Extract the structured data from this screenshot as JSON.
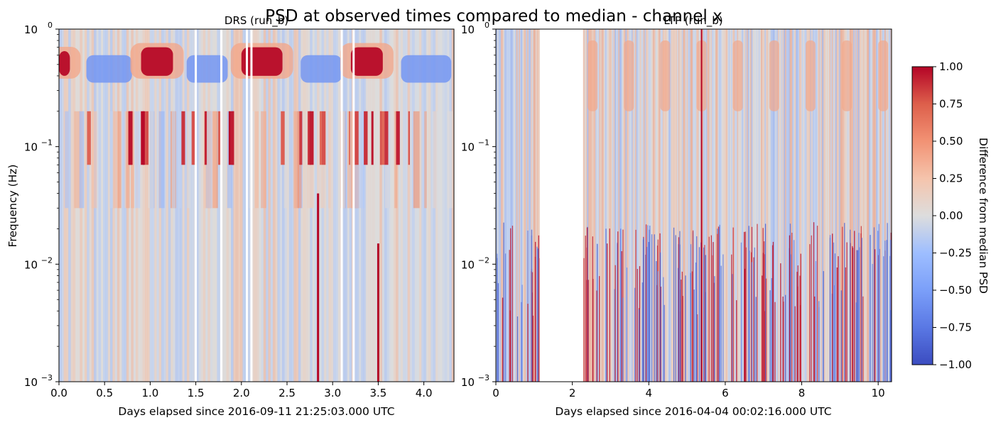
{
  "figure": {
    "title": "PSD at observed times compared to median - channel x"
  },
  "chart_data": [
    {
      "type": "heatmap",
      "title": "DRS (run_b)",
      "xlabel": "Days elapsed since 2016-09-11 21:25:03.000 UTC",
      "ylabel": "Frequency (Hz)",
      "xlim": [
        0,
        4.33
      ],
      "ylim": [
        0.001,
        1
      ],
      "yscale": "log",
      "x_ticks": [
        0.0,
        0.5,
        1.0,
        1.5,
        2.0,
        2.5,
        3.0,
        3.5,
        4.0
      ],
      "x_tick_labels": [
        "0.0",
        "0.5",
        "1.0",
        "1.5",
        "2.0",
        "2.5",
        "3.0",
        "3.5",
        "4.0"
      ],
      "y_tick_labels": [
        {
          "base": "10",
          "exp": "−3"
        },
        {
          "base": "10",
          "exp": "−2"
        },
        {
          "base": "10",
          "exp": "−1"
        },
        {
          "base": "10",
          "exp": "0"
        }
      ],
      "data_gaps_days": [
        1.5,
        1.78,
        2.06,
        2.11,
        3.1,
        3.23
      ],
      "strong_positive_bands": [
        {
          "x_range": [
            0.0,
            0.12
          ],
          "f_range": [
            0.4,
            0.65
          ]
        },
        {
          "x_range": [
            0.9,
            1.25
          ],
          "f_range": [
            0.4,
            0.7
          ]
        },
        {
          "x_range": [
            2.0,
            2.45
          ],
          "f_range": [
            0.4,
            0.7
          ]
        },
        {
          "x_range": [
            3.2,
            3.55
          ],
          "f_range": [
            0.4,
            0.7
          ]
        }
      ],
      "strong_negative_bands": [
        {
          "x_range": [
            0.3,
            0.8
          ],
          "f_range": [
            0.35,
            0.6
          ]
        },
        {
          "x_range": [
            1.4,
            1.85
          ],
          "f_range": [
            0.35,
            0.6
          ]
        },
        {
          "x_range": [
            2.65,
            3.1
          ],
          "f_range": [
            0.35,
            0.6
          ]
        },
        {
          "x_range": [
            3.75,
            4.3
          ],
          "f_range": [
            0.35,
            0.6
          ]
        }
      ],
      "notable_vertical_events_days": [
        2.84,
        3.5
      ]
    },
    {
      "type": "heatmap",
      "title": "LTP (run_b)",
      "xlabel": "Days elapsed since 2016-04-04 00:02:16.000 UTC",
      "xlim": [
        0,
        10.35
      ],
      "ylim": [
        0.001,
        1
      ],
      "yscale": "log",
      "x_ticks": [
        0,
        2,
        4,
        6,
        8,
        10
      ],
      "x_tick_labels": [
        "0",
        "2",
        "4",
        "6",
        "8",
        "10"
      ],
      "y_tick_labels": [
        {
          "base": "10",
          "exp": "−3"
        },
        {
          "base": "10",
          "exp": "−2"
        },
        {
          "base": "10",
          "exp": "−1"
        },
        {
          "base": "10",
          "exp": "0"
        }
      ],
      "data_gaps_days": [
        [
          1.15,
          2.28
        ]
      ],
      "notable_vertical_events_days": [
        5.38
      ]
    }
  ],
  "colorbar": {
    "label": "Difference from median PSD",
    "colormap": "coolwarm",
    "range": [
      -1.0,
      1.0
    ],
    "ticks": [
      1.0,
      0.75,
      0.5,
      0.25,
      0.0,
      -0.25,
      -0.5,
      -0.75,
      -1.0
    ],
    "tick_labels": [
      "1.00",
      "0.75",
      "0.50",
      "0.25",
      "0.00",
      "−0.25",
      "−0.50",
      "−0.75",
      "−1.00"
    ],
    "colors": {
      "min": "#3b4cc0",
      "mid": "#dddddd",
      "max": "#b40426"
    }
  }
}
